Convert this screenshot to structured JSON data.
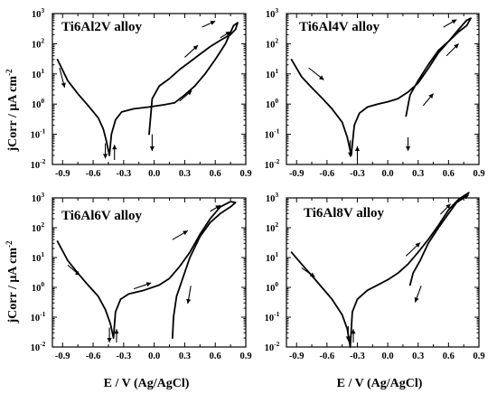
{
  "figure": {
    "y_axis_title": "jCorr / μA cm",
    "y_axis_title_superscript": "-2",
    "x_axis_title": "E / V (Ag/AgCl)"
  },
  "chart_data": [
    {
      "type": "line",
      "title": "Ti6Al2V alloy",
      "xlabel": "E / V (Ag/AgCl)",
      "ylabel": "jCorr / μA cm-2",
      "xlim": [
        -1.0,
        0.9
      ],
      "ylim": [
        0.01,
        1000
      ],
      "yscale": "log",
      "xticks": [
        "-0.9",
        "-0.6",
        "-0.3",
        "0.0",
        "0.3",
        "0.6",
        "0.9"
      ],
      "yticks": [
        "10-2",
        "10-1",
        "100",
        "101",
        "102",
        "103"
      ],
      "series": [
        {
          "values": [
            [
              -0.95,
              30
            ],
            [
              -0.85,
              6
            ],
            [
              -0.75,
              2.2
            ],
            [
              -0.65,
              0.9
            ],
            [
              -0.55,
              0.35
            ],
            [
              -0.5,
              0.15
            ],
            [
              -0.47,
              0.06
            ],
            [
              -0.44,
              0.02
            ],
            [
              -0.42,
              0.1
            ],
            [
              -0.38,
              0.3
            ],
            [
              -0.32,
              0.55
            ],
            [
              -0.2,
              0.7
            ],
            [
              -0.05,
              0.8
            ],
            [
              0.1,
              0.95
            ],
            [
              0.2,
              1.1
            ],
            [
              0.3,
              2.0
            ],
            [
              0.4,
              4.0
            ],
            [
              0.5,
              10
            ],
            [
              0.6,
              30
            ],
            [
              0.7,
              100
            ],
            [
              0.78,
              400
            ],
            [
              0.82,
              500
            ],
            [
              0.8,
              300
            ],
            [
              0.75,
              200
            ],
            [
              0.65,
              130
            ],
            [
              0.55,
              80
            ],
            [
              0.45,
              45
            ],
            [
              0.35,
              25
            ],
            [
              0.25,
              14
            ],
            [
              0.15,
              7
            ],
            [
              0.05,
              4
            ],
            [
              -0.02,
              1.5
            ],
            [
              -0.05,
              0.1
            ]
          ]
        }
      ]
    },
    {
      "type": "line",
      "title": "Ti6Al4V alloy",
      "xlabel": "E / V (Ag/AgCl)",
      "ylabel": "jCorr / μA cm-2",
      "xlim": [
        -1.0,
        0.9
      ],
      "ylim": [
        0.01,
        1000
      ],
      "yscale": "log",
      "xticks": [
        "-0.9",
        "-0.6",
        "-0.3",
        "0.0",
        "0.3",
        "0.6",
        "0.9"
      ],
      "yticks": [
        "10-2",
        "10-1",
        "100",
        "101",
        "102",
        "103"
      ],
      "series": [
        {
          "values": [
            [
              -0.95,
              30
            ],
            [
              -0.85,
              8
            ],
            [
              -0.75,
              3.5
            ],
            [
              -0.65,
              1.6
            ],
            [
              -0.55,
              0.7
            ],
            [
              -0.45,
              0.25
            ],
            [
              -0.4,
              0.08
            ],
            [
              -0.36,
              0.02
            ],
            [
              -0.33,
              0.2
            ],
            [
              -0.28,
              0.5
            ],
            [
              -0.2,
              0.8
            ],
            [
              -0.1,
              1.0
            ],
            [
              0.0,
              1.2
            ],
            [
              0.1,
              1.5
            ],
            [
              0.2,
              2.5
            ],
            [
              0.3,
              5
            ],
            [
              0.4,
              15
            ],
            [
              0.5,
              50
            ],
            [
              0.6,
              120
            ],
            [
              0.7,
              300
            ],
            [
              0.78,
              600
            ],
            [
              0.82,
              700
            ],
            [
              0.78,
              400
            ],
            [
              0.7,
              250
            ],
            [
              0.6,
              120
            ],
            [
              0.5,
              60
            ],
            [
              0.4,
              20
            ],
            [
              0.3,
              6
            ],
            [
              0.22,
              2
            ],
            [
              0.18,
              0.4
            ]
          ]
        }
      ]
    },
    {
      "type": "line",
      "title": "Ti6Al6V alloy",
      "xlabel": "E / V (Ag/AgCl)",
      "ylabel": "jCorr / μA cm-2",
      "xlim": [
        -1.0,
        0.9
      ],
      "ylim": [
        0.01,
        1000
      ],
      "yscale": "log",
      "xticks": [
        "-0.9",
        "-0.6",
        "-0.3",
        "0.0",
        "0.3",
        "0.6",
        "0.9"
      ],
      "yticks": [
        "10-2",
        "10-1",
        "100",
        "101",
        "102",
        "103"
      ],
      "series": [
        {
          "values": [
            [
              -0.95,
              35
            ],
            [
              -0.85,
              8
            ],
            [
              -0.75,
              3
            ],
            [
              -0.65,
              1.2
            ],
            [
              -0.55,
              0.5
            ],
            [
              -0.48,
              0.18
            ],
            [
              -0.43,
              0.06
            ],
            [
              -0.4,
              0.02
            ],
            [
              -0.38,
              0.15
            ],
            [
              -0.33,
              0.4
            ],
            [
              -0.25,
              0.6
            ],
            [
              -0.1,
              0.8
            ],
            [
              0.05,
              1.2
            ],
            [
              0.15,
              2
            ],
            [
              0.25,
              5
            ],
            [
              0.35,
              15
            ],
            [
              0.45,
              60
            ],
            [
              0.55,
              200
            ],
            [
              0.65,
              500
            ],
            [
              0.75,
              750
            ],
            [
              0.8,
              700
            ],
            [
              0.75,
              500
            ],
            [
              0.65,
              300
            ],
            [
              0.55,
              150
            ],
            [
              0.45,
              50
            ],
            [
              0.35,
              10
            ],
            [
              0.28,
              2
            ],
            [
              0.22,
              0.5
            ],
            [
              0.19,
              0.1
            ],
            [
              0.18,
              0.02
            ]
          ]
        }
      ]
    },
    {
      "type": "line",
      "title": "Ti6Al8V alloy",
      "xlabel": "E / V (Ag/AgCl)",
      "ylabel": "jCorr / μA cm-2",
      "xlim": [
        -1.0,
        0.9
      ],
      "ylim": [
        0.01,
        1000
      ],
      "yscale": "log",
      "xticks": [
        "-0.9",
        "-0.6",
        "-0.3",
        "0.0",
        "0.3",
        "0.6",
        "0.9"
      ],
      "yticks": [
        "10-2",
        "10-1",
        "100",
        "101",
        "102",
        "103"
      ],
      "series": [
        {
          "values": [
            [
              -0.95,
              15
            ],
            [
              -0.85,
              6
            ],
            [
              -0.75,
              2.5
            ],
            [
              -0.65,
              1.0
            ],
            [
              -0.55,
              0.4
            ],
            [
              -0.45,
              0.12
            ],
            [
              -0.4,
              0.04
            ],
            [
              -0.37,
              0.01
            ],
            [
              -0.35,
              0.15
            ],
            [
              -0.3,
              0.4
            ],
            [
              -0.2,
              0.8
            ],
            [
              -0.1,
              1.2
            ],
            [
              0.0,
              1.8
            ],
            [
              0.1,
              3
            ],
            [
              0.2,
              6
            ],
            [
              0.3,
              15
            ],
            [
              0.4,
              40
            ],
            [
              0.5,
              120
            ],
            [
              0.6,
              400
            ],
            [
              0.7,
              900
            ],
            [
              0.8,
              1500
            ],
            [
              0.75,
              1000
            ],
            [
              0.68,
              700
            ],
            [
              0.6,
              300
            ],
            [
              0.5,
              100
            ],
            [
              0.4,
              30
            ],
            [
              0.32,
              8
            ],
            [
              0.25,
              3
            ],
            [
              0.22,
              1.2
            ]
          ]
        }
      ]
    }
  ]
}
